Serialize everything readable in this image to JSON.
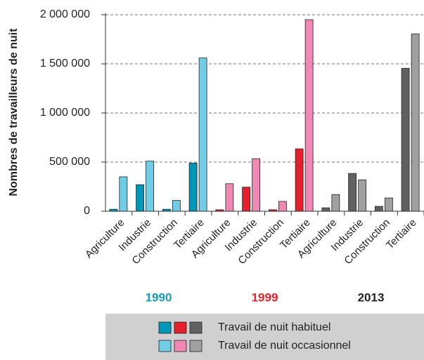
{
  "chart_data": {
    "type": "bar",
    "ylabel": "Nombres de travailleurs de nuit",
    "categories": [
      "Agriculture",
      "Industrie",
      "Construction",
      "Tertiaire",
      "Agriculture",
      "Industrie",
      "Construction",
      "Tertiaire",
      "Agriculture",
      "Industrie",
      "Construction",
      "Tertiaire"
    ],
    "groups": [
      {
        "label": "1990",
        "color": "#1a9bb5"
      },
      {
        "label": "1999",
        "color": "#e3202b"
      },
      {
        "label": "2013",
        "color": "#222222"
      }
    ],
    "series": [
      {
        "name": "Travail de nuit habituel",
        "colors": [
          "#0096b8",
          "#e3202b",
          "#616161"
        ],
        "values": [
          20000,
          270000,
          20000,
          490000,
          15000,
          245000,
          15000,
          635000,
          35000,
          385000,
          50000,
          1455000
        ]
      },
      {
        "name": "Travail de nuit occasionnel",
        "colors": [
          "#6fcde6",
          "#f088b4",
          "#a0a0a0"
        ],
        "values": [
          350000,
          510000,
          110000,
          1560000,
          280000,
          535000,
          100000,
          1950000,
          170000,
          320000,
          135000,
          1805000
        ]
      }
    ],
    "ylim": [
      0,
      2000000
    ],
    "yticks": [
      0,
      {
        "value": 500000,
        "label": "500 000"
      },
      {
        "value": 1000000,
        "label": "1 000 000"
      },
      {
        "value": 1500000,
        "label": "1 500 000"
      },
      {
        "value": 2000000,
        "label": "2 000 000"
      }
    ],
    "grid": true
  }
}
